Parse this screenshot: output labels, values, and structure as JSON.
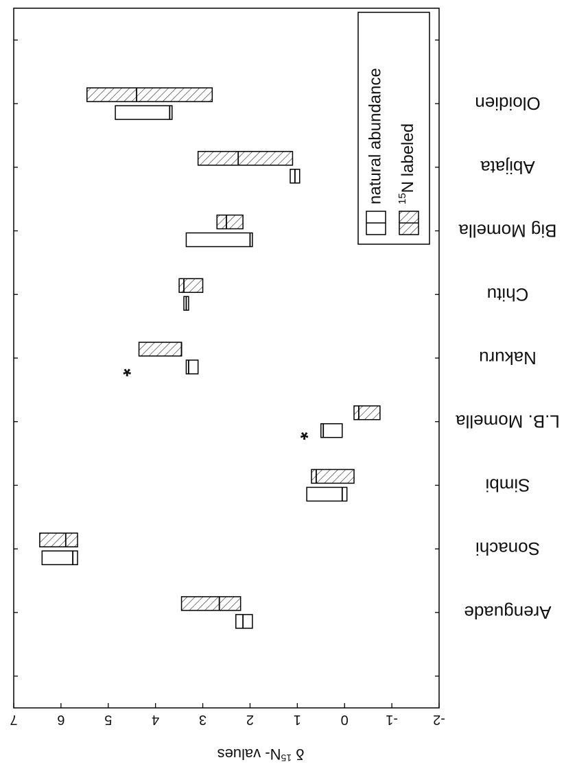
{
  "chart_data": {
    "type": "box",
    "orientation": "rotated-180",
    "categories": [
      "Arenguade",
      "Sonachi",
      "Simbi",
      "L.B. Momella",
      "Nakuru",
      "Chitu",
      "Big Momella",
      "Abijata",
      "Oloidien"
    ],
    "ylabel_prefix": "δ ",
    "ylabel_sup": "15",
    "ylabel_main": "N- values",
    "ylim": [
      -2,
      7
    ],
    "yticks": [
      "7",
      "6",
      "5",
      "4",
      "3",
      "2",
      "1",
      "0",
      "-1",
      "-2"
    ],
    "grid": false,
    "legend": {
      "placement": "top-left",
      "entries": [
        {
          "label_main": "natural abundance",
          "label_sup": "",
          "pattern": "open"
        },
        {
          "label_main": "N labeled",
          "label_sup": "15",
          "pattern": "hatched"
        }
      ]
    },
    "series": [
      {
        "name": "natural abundance",
        "boxes": [
          {
            "category": "Arenguade",
            "q1": 1.95,
            "median": 2.15,
            "q3": 2.3
          },
          {
            "category": "Sonachi",
            "q1": 5.65,
            "median": 5.75,
            "q3": 6.4
          },
          {
            "category": "Simbi",
            "q1": -0.05,
            "median": 0.05,
            "q3": 0.8
          },
          {
            "category": "L.B. Momella",
            "q1": 0.05,
            "median": 0.45,
            "q3": 0.5
          },
          {
            "category": "Nakuru",
            "q1": 3.1,
            "median": 3.3,
            "q3": 3.35
          },
          {
            "category": "Chitu",
            "q1": 3.3,
            "median": 3.35,
            "q3": 3.4
          },
          {
            "category": "Big Momella",
            "q1": 1.95,
            "median": 2.0,
            "q3": 3.35
          },
          {
            "category": "Abijata",
            "q1": 0.95,
            "median": 1.05,
            "q3": 1.15
          },
          {
            "category": "Oloidien",
            "q1": 3.65,
            "median": 3.7,
            "q3": 4.85
          }
        ]
      },
      {
        "name": "15N labeled",
        "boxes": [
          {
            "category": "Arenguade",
            "q1": 2.2,
            "median": 2.65,
            "q3": 3.45
          },
          {
            "category": "Sonachi",
            "q1": 5.65,
            "median": 5.9,
            "q3": 6.45
          },
          {
            "category": "Simbi",
            "q1": -0.2,
            "median": 0.6,
            "q3": 0.7
          },
          {
            "category": "L.B. Momella",
            "q1": -0.75,
            "median": -0.3,
            "q3": -0.2
          },
          {
            "category": "Nakuru",
            "q1": 3.45,
            "median": 3.45,
            "q3": 4.35
          },
          {
            "category": "Chitu",
            "q1": 3.0,
            "median": 3.4,
            "q3": 3.5
          },
          {
            "category": "Big Momella",
            "q1": 2.15,
            "median": 2.5,
            "q3": 2.7
          },
          {
            "category": "Abijata",
            "q1": 1.1,
            "median": 2.25,
            "q3": 3.1
          },
          {
            "category": "Oloidien",
            "q1": 2.8,
            "median": 4.4,
            "q3": 5.45
          }
        ]
      }
    ],
    "annotations": [
      {
        "text": "*",
        "category": "L.B. Momella",
        "y": 0.85
      },
      {
        "text": "*",
        "category": "Nakuru",
        "y": 4.6
      }
    ]
  }
}
